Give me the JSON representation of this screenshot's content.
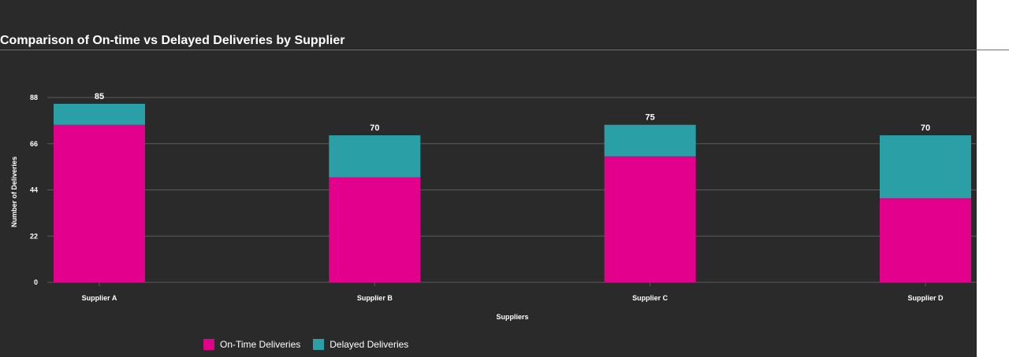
{
  "chart_data": {
    "type": "bar",
    "stacked": true,
    "title": "Comparison of On-time vs Delayed Deliveries by Supplier",
    "xlabel": "Suppliers",
    "ylabel": "Number of Deliveries",
    "categories": [
      "Supplier A",
      "Supplier B",
      "Supplier C",
      "Supplier D"
    ],
    "series": [
      {
        "name": "On-Time Deliveries",
        "values": [
          75,
          50,
          60,
          40
        ],
        "color": "#e3008c"
      },
      {
        "name": "Delayed Deliveries",
        "values": [
          10,
          20,
          15,
          30
        ],
        "color": "#2b9fa6"
      }
    ],
    "totals": [
      "85",
      "70",
      "75",
      "70"
    ],
    "yticks": [
      "0",
      "22",
      "44",
      "66",
      "88"
    ],
    "ylim": [
      0,
      88
    ],
    "grid": true,
    "legend_position": "bottom-left"
  },
  "colors": {
    "background": "#2a2a2a",
    "grid": "#5a5a5a",
    "text": "#ffffff"
  }
}
